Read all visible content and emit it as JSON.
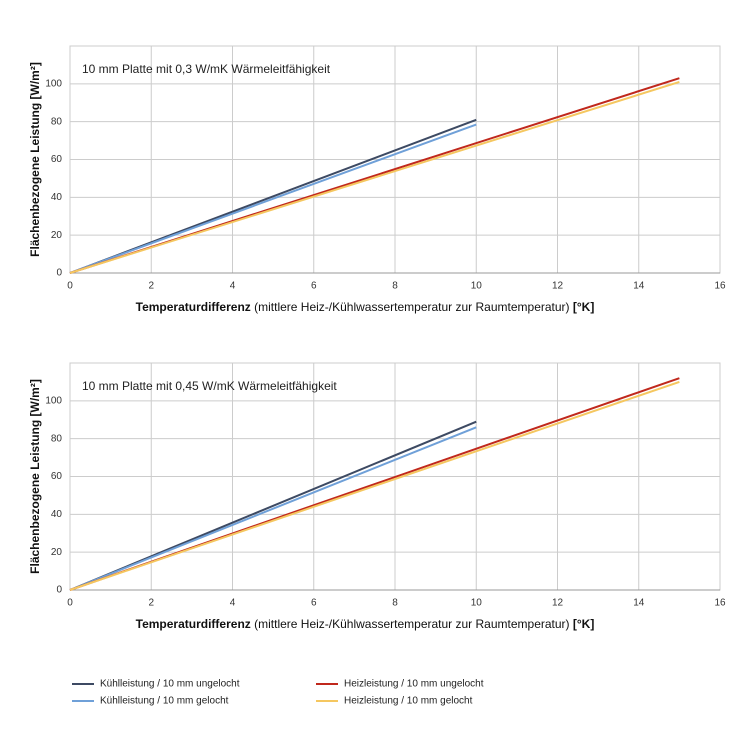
{
  "chart_data": [
    {
      "type": "line",
      "annotation": "10 mm Platte mit 0,3 W/mK Wärmeleitfähigkeit",
      "ylabel": "Flächenbezogene Leistung [W/m²]",
      "xlabel": [
        "Temperaturdifferenz",
        " (mittlere Heiz-/Kühlwassertemperatur zur Raumtemperatur) ",
        "[°K]"
      ],
      "xlim": [
        0,
        16
      ],
      "xticks": [
        0,
        2,
        4,
        6,
        8,
        10,
        12,
        14,
        16
      ],
      "ylim": [
        0,
        120
      ],
      "yticks": [
        0,
        20,
        40,
        60,
        80,
        100
      ],
      "grid": true,
      "series": [
        {
          "name": "Kühlleistung / 10 mm ungelocht",
          "color": "#3d4a63",
          "x": [
            0,
            10
          ],
          "values": [
            0,
            81
          ]
        },
        {
          "name": "Kühlleistung / 10 mm gelocht",
          "color": "#6fa0d8",
          "x": [
            0,
            10
          ],
          "values": [
            0,
            78.5
          ]
        },
        {
          "name": "Heizleistung / 10 mm ungelocht",
          "color": "#c0281c",
          "x": [
            0,
            15
          ],
          "values": [
            0,
            103
          ]
        },
        {
          "name": "Heizleistung / 10 mm gelocht",
          "color": "#f5c760",
          "x": [
            0,
            15
          ],
          "values": [
            0,
            101
          ]
        }
      ]
    },
    {
      "type": "line",
      "annotation": "10 mm Platte mit 0,45 W/mK Wärmeleitfähigkeit",
      "ylabel": "Flächenbezogene Leistung [W/m²]",
      "xlabel": [
        "Temperaturdifferenz",
        " (mittlere Heiz-/Kühlwassertemperatur zur Raumtemperatur) ",
        "[°K]"
      ],
      "xlim": [
        0,
        16
      ],
      "xticks": [
        0,
        2,
        4,
        6,
        8,
        10,
        12,
        14,
        16
      ],
      "ylim": [
        0,
        120
      ],
      "yticks": [
        0,
        20,
        40,
        60,
        80,
        100
      ],
      "grid": true,
      "series": [
        {
          "color": "#3d4a63",
          "x": [
            0,
            10
          ],
          "values": [
            0,
            89
          ]
        },
        {
          "color": "#6fa0d8",
          "x": [
            0,
            10
          ],
          "values": [
            0,
            86
          ]
        },
        {
          "color": "#c0281c",
          "x": [
            0,
            15
          ],
          "values": [
            0,
            112
          ]
        },
        {
          "color": "#f5c760",
          "x": [
            0,
            15
          ],
          "values": [
            0,
            110
          ]
        }
      ]
    }
  ]
}
